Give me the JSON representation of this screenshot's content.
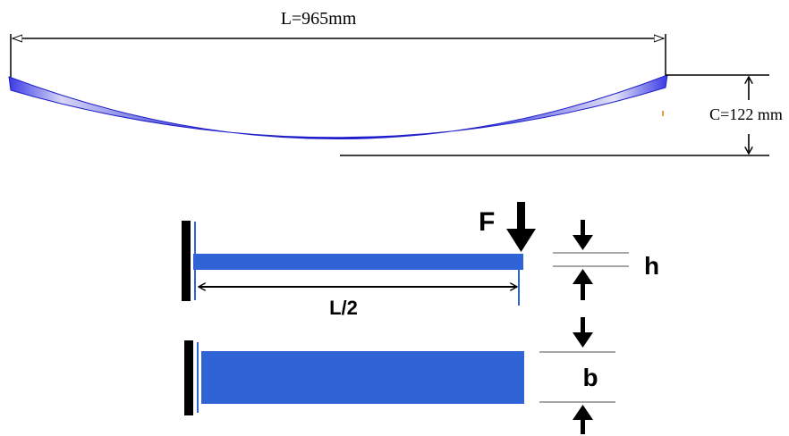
{
  "spring": {
    "length_label": "L=965mm",
    "camber_label": "C=122 mm"
  },
  "beam": {
    "force_label": "F",
    "half_length_label": "L/2",
    "thickness_label": "h",
    "width_label": "b"
  },
  "colors": {
    "spring_dark": "#1a1adc",
    "spring_light": "#c8c8f4",
    "beam_blue": "#2f63d6",
    "line": "#000000",
    "gray_line": "#8a8a8a"
  }
}
